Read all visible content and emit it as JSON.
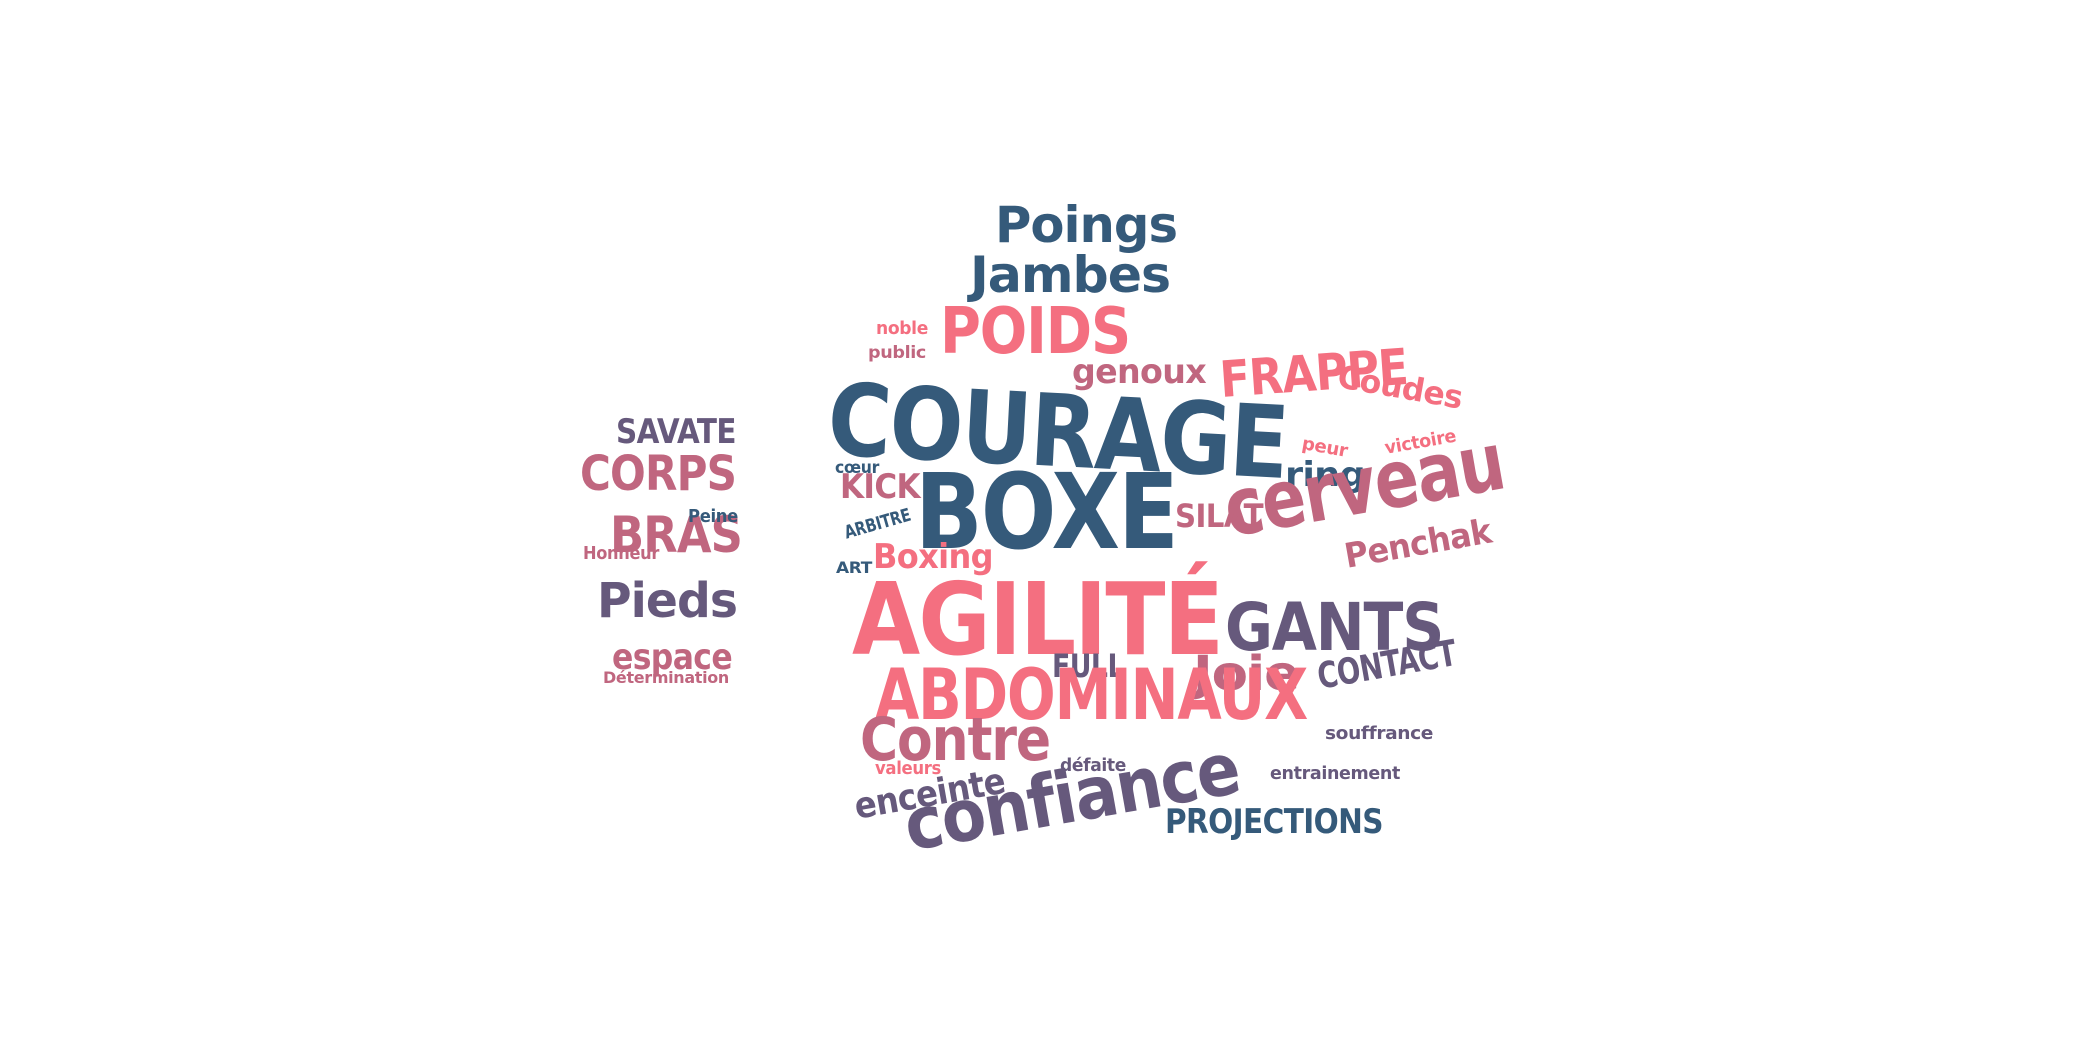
{
  "palette": {
    "navy": "#355a7a",
    "plum": "#66597c",
    "rose": "#c0667f",
    "coral": "#f46f80"
  },
  "words": [
    {
      "text": "Poings",
      "color": "navy"
    },
    {
      "text": "Jambes",
      "color": "navy"
    },
    {
      "text": "noble",
      "color": "coral"
    },
    {
      "text": "public",
      "color": "rose"
    },
    {
      "text": "POIDS",
      "color": "coral"
    },
    {
      "text": "genoux",
      "color": "rose"
    },
    {
      "text": "FRAPPE",
      "color": "coral"
    },
    {
      "text": "Coudes",
      "color": "coral"
    },
    {
      "text": "SAVATE",
      "color": "plum"
    },
    {
      "text": "COURAGE",
      "color": "navy"
    },
    {
      "text": "peur",
      "color": "coral"
    },
    {
      "text": "victoire",
      "color": "coral"
    },
    {
      "text": "CORPS",
      "color": "rose"
    },
    {
      "text": "cœur",
      "color": "navy"
    },
    {
      "text": "ring",
      "color": "navy"
    },
    {
      "text": "KICK",
      "color": "rose"
    },
    {
      "text": "BOXE",
      "color": "navy"
    },
    {
      "text": "cerveau",
      "color": "rose"
    },
    {
      "text": "SILAT",
      "color": "rose"
    },
    {
      "text": "BRAS",
      "color": "rose"
    },
    {
      "text": "Peine",
      "color": "navy"
    },
    {
      "text": "ARBITRE",
      "color": "navy"
    },
    {
      "text": "Honneur",
      "color": "rose"
    },
    {
      "text": "Boxing",
      "color": "coral"
    },
    {
      "text": "Penchak",
      "color": "rose"
    },
    {
      "text": "ART",
      "color": "navy"
    },
    {
      "text": "Pieds",
      "color": "plum"
    },
    {
      "text": "AGILITÉ",
      "color": "coral"
    },
    {
      "text": "GANTS",
      "color": "plum"
    },
    {
      "text": "espace",
      "color": "rose"
    },
    {
      "text": "FULL",
      "color": "plum"
    },
    {
      "text": "Joie",
      "color": "rose"
    },
    {
      "text": "CONTACT",
      "color": "plum"
    },
    {
      "text": "Détermination",
      "color": "rose"
    },
    {
      "text": "ABDOMINAUX",
      "color": "coral"
    },
    {
      "text": "Contre",
      "color": "rose"
    },
    {
      "text": "souffrance",
      "color": "plum"
    },
    {
      "text": "défaite",
      "color": "plum"
    },
    {
      "text": "valeurs",
      "color": "coral"
    },
    {
      "text": "entrainement",
      "color": "plum"
    },
    {
      "text": "enceinte",
      "color": "plum"
    },
    {
      "text": "confiance",
      "color": "plum"
    },
    {
      "text": "PROJECTIONS",
      "color": "navy"
    }
  ]
}
